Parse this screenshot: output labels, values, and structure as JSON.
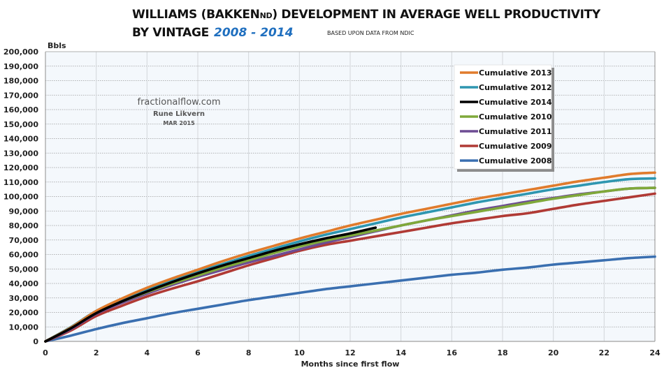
{
  "header": {
    "title_line1_pre": "WILLIAMS (BAKKEN",
    "title_line1_sub": "ND",
    "title_line1_post": ") DEVELOPMENT IN AVERAGE WELL PRODUCTIVITY",
    "title_line2": "BY VINTAGE",
    "years": "2008 - 2014",
    "source_note": "BASED UPON DATA FROM NDIC"
  },
  "watermark": {
    "site": "fractionalflow.com",
    "author": "Rune Likvern",
    "date": "MAR 2015"
  },
  "chart_data": {
    "type": "line",
    "title": "WILLIAMS (BAKKENND) DEVELOPMENT IN AVERAGE WELL PRODUCTIVITY BY VINTAGE 2008 - 2014",
    "xlabel": "Months since first flow",
    "ylabel": "Bbls",
    "xlim": [
      0,
      24
    ],
    "ylim": [
      0,
      200000
    ],
    "xticks": [
      0,
      2,
      4,
      6,
      8,
      10,
      12,
      14,
      16,
      18,
      20,
      22,
      24
    ],
    "xtick_labels": [
      "0",
      "2",
      "4",
      "6",
      "8",
      "10",
      "12",
      "14",
      "16",
      "18",
      "20",
      "22",
      "24"
    ],
    "yticks": [
      0,
      10000,
      20000,
      30000,
      40000,
      50000,
      60000,
      70000,
      80000,
      90000,
      100000,
      110000,
      120000,
      130000,
      140000,
      150000,
      160000,
      170000,
      180000,
      190000,
      200000
    ],
    "ytick_labels": [
      "0",
      "10,000",
      "20,000",
      "30,000",
      "40,000",
      "50,000",
      "60,000",
      "70,000",
      "80,000",
      "90,000",
      "100,000",
      "110,000",
      "120,000",
      "130,000",
      "140,000",
      "150,000",
      "160,000",
      "170,000",
      "180,000",
      "190,000",
      "200,000"
    ],
    "grid": true,
    "legend_position": "top-right",
    "series": [
      {
        "name": "Cumulative 2013",
        "color": "#e07b2c",
        "x": [
          0,
          1,
          2,
          3,
          4,
          5,
          6,
          7,
          8,
          9,
          10,
          11,
          12,
          13,
          14,
          15,
          16,
          17,
          18,
          19,
          20,
          21,
          22,
          23,
          24
        ],
        "values": [
          0,
          9500,
          21000,
          29500,
          37000,
          43500,
          49500,
          55500,
          61000,
          66000,
          71000,
          75500,
          80000,
          84000,
          88000,
          91500,
          95000,
          98500,
          101500,
          104500,
          107500,
          110500,
          113000,
          115500,
          116500
        ]
      },
      {
        "name": "Cumulative 2012",
        "color": "#2e96b0",
        "x": [
          0,
          1,
          2,
          3,
          4,
          5,
          6,
          7,
          8,
          9,
          10,
          11,
          12,
          13,
          14,
          15,
          16,
          17,
          18,
          19,
          20,
          21,
          22,
          23,
          24
        ],
        "values": [
          0,
          9800,
          21000,
          28500,
          35500,
          42000,
          48000,
          53500,
          59000,
          64000,
          69000,
          73500,
          77500,
          81500,
          85500,
          89000,
          92500,
          96000,
          99000,
          102000,
          105000,
          107500,
          110000,
          112000,
          112500
        ]
      },
      {
        "name": "Cumulative 2014",
        "color": "#000000",
        "x": [
          0,
          1,
          2,
          3,
          4,
          5,
          6,
          7,
          8,
          9,
          10,
          11,
          12,
          13
        ],
        "values": [
          0,
          9000,
          19500,
          27500,
          34500,
          41000,
          47000,
          52500,
          57500,
          62500,
          67000,
          71000,
          74500,
          78500
        ]
      },
      {
        "name": "Cumulative 2010",
        "color": "#7fa83a",
        "x": [
          0,
          1,
          2,
          3,
          4,
          5,
          6,
          7,
          8,
          9,
          10,
          11,
          12,
          13,
          14,
          15,
          16,
          17,
          18,
          19,
          20,
          21,
          22,
          23,
          24
        ],
        "values": [
          0,
          9800,
          20500,
          27500,
          34000,
          40000,
          45500,
          51000,
          56000,
          61000,
          65500,
          69500,
          73000,
          76500,
          80000,
          83500,
          86500,
          89500,
          92500,
          95500,
          98500,
          101000,
          103500,
          105500,
          106000
        ]
      },
      {
        "name": "Cumulative 2011",
        "color": "#6d4c93",
        "x": [
          0,
          1,
          2,
          3,
          4,
          5,
          6,
          7,
          8,
          9,
          10,
          11,
          12,
          13,
          14,
          15,
          16,
          17,
          18,
          19,
          20,
          21,
          22,
          23,
          24
        ],
        "values": [
          0,
          8500,
          19000,
          26500,
          33000,
          39000,
          44500,
          49500,
          54500,
          59000,
          63500,
          68000,
          72000,
          76000,
          80000,
          83500,
          87000,
          90500,
          93500,
          96500,
          99000,
          101500,
          103500,
          105500,
          106000
        ]
      },
      {
        "name": "Cumulative 2009",
        "color": "#b03a35",
        "x": [
          0,
          1,
          2,
          3,
          4,
          5,
          6,
          7,
          8,
          9,
          10,
          11,
          12,
          13,
          14,
          15,
          16,
          17,
          18,
          19,
          20,
          21,
          22,
          23,
          24
        ],
        "values": [
          0,
          7500,
          17500,
          24500,
          31000,
          36500,
          41500,
          47000,
          52500,
          57500,
          62500,
          66500,
          69500,
          72500,
          75500,
          78500,
          81500,
          84000,
          86500,
          88500,
          91500,
          94500,
          97000,
          99500,
          102000
        ]
      },
      {
        "name": "Cumulative 2008",
        "color": "#3a6fb0",
        "x": [
          0,
          1,
          2,
          3,
          4,
          5,
          6,
          7,
          8,
          9,
          10,
          11,
          12,
          13,
          14,
          15,
          16,
          17,
          18,
          19,
          20,
          21,
          22,
          23,
          24
        ],
        "values": [
          0,
          4000,
          8500,
          12500,
          16000,
          19500,
          22500,
          25500,
          28500,
          31000,
          33500,
          36000,
          38000,
          40000,
          42000,
          44000,
          46000,
          47500,
          49500,
          51000,
          53000,
          54500,
          56000,
          57500,
          58500
        ]
      }
    ]
  }
}
